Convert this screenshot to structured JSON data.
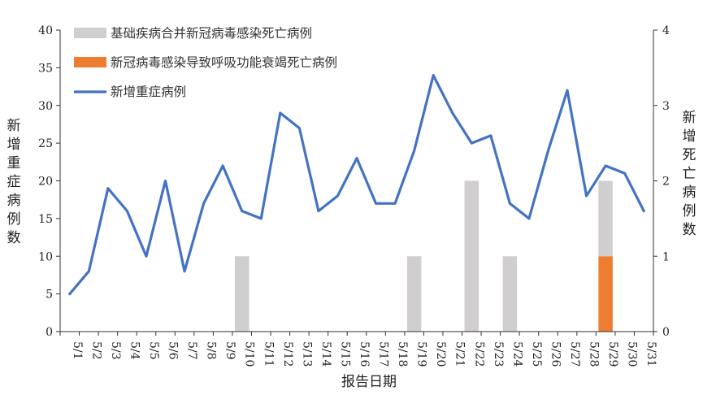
{
  "chart_data": {
    "type": "bar+line",
    "x_title": "报告日期",
    "y_left_title": "新增重症病例数",
    "y_right_title": "新增死亡病例数",
    "y_left_lim": [
      0,
      40
    ],
    "y_left_ticks": [
      0,
      5,
      10,
      15,
      20,
      25,
      30,
      35,
      40
    ],
    "y_right_lim": [
      0,
      4
    ],
    "y_right_ticks": [
      0,
      1,
      2,
      3,
      4
    ],
    "categories": [
      "5/1",
      "5/2",
      "5/3",
      "5/4",
      "5/5",
      "5/6",
      "5/7",
      "5/8",
      "5/9",
      "5/10",
      "5/11",
      "5/12",
      "5/13",
      "5/14",
      "5/15",
      "5/16",
      "5/17",
      "5/18",
      "5/19",
      "5/20",
      "5/21",
      "5/22",
      "5/23",
      "5/24",
      "5/25",
      "5/26",
      "5/27",
      "5/28",
      "5/29",
      "5/30",
      "5/31"
    ],
    "series": [
      {
        "name": "基础疾病合并新冠病毒感染死亡病例",
        "kind": "bar-stack",
        "axis": "right",
        "color": "#d0cece",
        "values": [
          0,
          0,
          0,
          0,
          0,
          0,
          0,
          0,
          0,
          1,
          0,
          0,
          0,
          0,
          0,
          0,
          0,
          0,
          1,
          0,
          0,
          2,
          0,
          1,
          0,
          0,
          0,
          0,
          1,
          0,
          0
        ]
      },
      {
        "name": "新冠病毒感染导致呼吸功能衰竭死亡病例",
        "kind": "bar-stack",
        "axis": "right",
        "color": "#ed7d31",
        "values": [
          0,
          0,
          0,
          0,
          0,
          0,
          0,
          0,
          0,
          0,
          0,
          0,
          0,
          0,
          0,
          0,
          0,
          0,
          0,
          0,
          0,
          0,
          0,
          0,
          0,
          0,
          0,
          0,
          1,
          0,
          0
        ]
      },
      {
        "name": "新增重症病例",
        "kind": "line",
        "axis": "left",
        "color": "#4472c4",
        "values": [
          5,
          8,
          19,
          16,
          10,
          20,
          8,
          17,
          22,
          16,
          15,
          29,
          27,
          16,
          18,
          23,
          17,
          17,
          24,
          34,
          29,
          25,
          26,
          17,
          15,
          24,
          32,
          18,
          22,
          21,
          16
        ]
      }
    ],
    "legend_position": "top-left",
    "grid": false
  }
}
